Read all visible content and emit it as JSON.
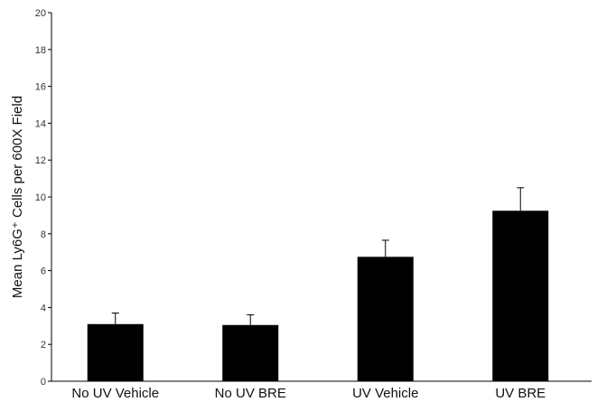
{
  "chart_data": {
    "type": "bar",
    "title": "",
    "xlabel": "",
    "ylabel": "Mean Ly6G⁺ Cells per 600X Field",
    "ylim": [
      0,
      20
    ],
    "yticks": [
      0,
      2,
      4,
      6,
      8,
      10,
      12,
      14,
      16,
      18,
      20
    ],
    "categories": [
      "No UV Vehicle",
      "No UV BRE",
      "UV Vehicle",
      "UV BRE"
    ],
    "values": [
      3.1,
      3.05,
      6.75,
      9.25
    ],
    "error_upper": [
      0.6,
      0.55,
      0.9,
      1.25
    ],
    "grid": false,
    "legend": "none",
    "bar_color": "#000000"
  }
}
